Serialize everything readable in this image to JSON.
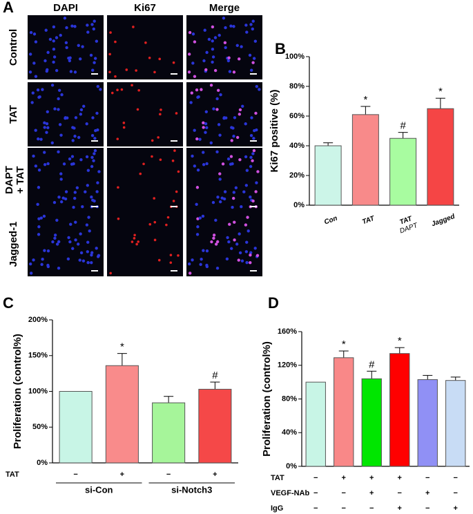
{
  "micrograph": {
    "panel": "A",
    "columns": [
      "DAPI",
      "Ki67",
      "Merge"
    ],
    "rows": [
      "Control",
      "TAT",
      "DAPT\n+ TAT",
      "Jagged-1"
    ]
  },
  "chart_data": [
    {
      "type": "bar",
      "panel": "B",
      "ylabel": "Ki67 positive (%)",
      "categories": [
        "Con",
        "TAT",
        [
          "TAT",
          "DAPT"
        ],
        "Jagged"
      ],
      "values": [
        40,
        61,
        45,
        65
      ],
      "errors": [
        2,
        5.5,
        4,
        7
      ],
      "annotations": [
        null,
        "*",
        "#",
        "*"
      ],
      "colors": [
        "#ccf5e8",
        "#f88a8a",
        "#a8fca0",
        "#f54545"
      ],
      "ylim": [
        0,
        100
      ],
      "yticks": [
        {
          "value": 0,
          "label": "0%"
        },
        {
          "value": 20,
          "label": "20%"
        },
        {
          "value": 40,
          "label": "40%"
        },
        {
          "value": 60,
          "label": "60%"
        },
        {
          "value": 80,
          "label": "80%"
        },
        {
          "value": 100,
          "label": "100%"
        }
      ]
    },
    {
      "type": "bar",
      "panel": "C",
      "ylabel": "Proliferation (control%)",
      "values": [
        100,
        136,
        84,
        103
      ],
      "errors": [
        0,
        17,
        9,
        10
      ],
      "annotations": [
        null,
        "*",
        null,
        "#"
      ],
      "colors": [
        "#c8f5e6",
        "#f98b8b",
        "#a6f59a",
        "#f54848"
      ],
      "conditions": [
        {
          "name": "TAT",
          "values": [
            "−",
            "+",
            "−",
            "+"
          ]
        }
      ],
      "groups": [
        "si-Con",
        "si-Notch3"
      ],
      "ylim": [
        0,
        200
      ],
      "yticks": [
        {
          "value": 0,
          "label": "0%"
        },
        {
          "value": 50,
          "label": "50%"
        },
        {
          "value": 100,
          "label": "100%"
        },
        {
          "value": 150,
          "label": "150%"
        },
        {
          "value": 200,
          "label": "200%"
        }
      ]
    },
    {
      "type": "bar",
      "panel": "D",
      "ylabel": "Proliferation (control%)",
      "values": [
        100,
        129,
        104,
        134,
        103,
        102
      ],
      "errors": [
        0,
        8,
        9,
        7,
        5,
        4
      ],
      "annotations": [
        null,
        "*",
        "#",
        "*",
        null,
        null
      ],
      "colors": [
        "#c8f5e6",
        "#f98888",
        "#00e600",
        "#ff0000",
        "#9090f5",
        "#c8dcf5"
      ],
      "conditions": [
        {
          "name": "TAT",
          "values": [
            "−",
            "+",
            "+",
            "+",
            "−",
            "−"
          ]
        },
        {
          "name": "VEGF-NAb",
          "values": [
            "−",
            "−",
            "+",
            "−",
            "+",
            "−"
          ]
        },
        {
          "name": "IgG",
          "values": [
            "−",
            "−",
            "−",
            "+",
            "−",
            "+"
          ]
        }
      ],
      "ylim": [
        0,
        160
      ],
      "yticks": [
        {
          "value": 0,
          "label": "0%"
        },
        {
          "value": 40,
          "label": "40%"
        },
        {
          "value": 80,
          "label": "80%"
        },
        {
          "value": 120,
          "label": "120%"
        },
        {
          "value": 160,
          "label": "160%"
        }
      ]
    }
  ]
}
